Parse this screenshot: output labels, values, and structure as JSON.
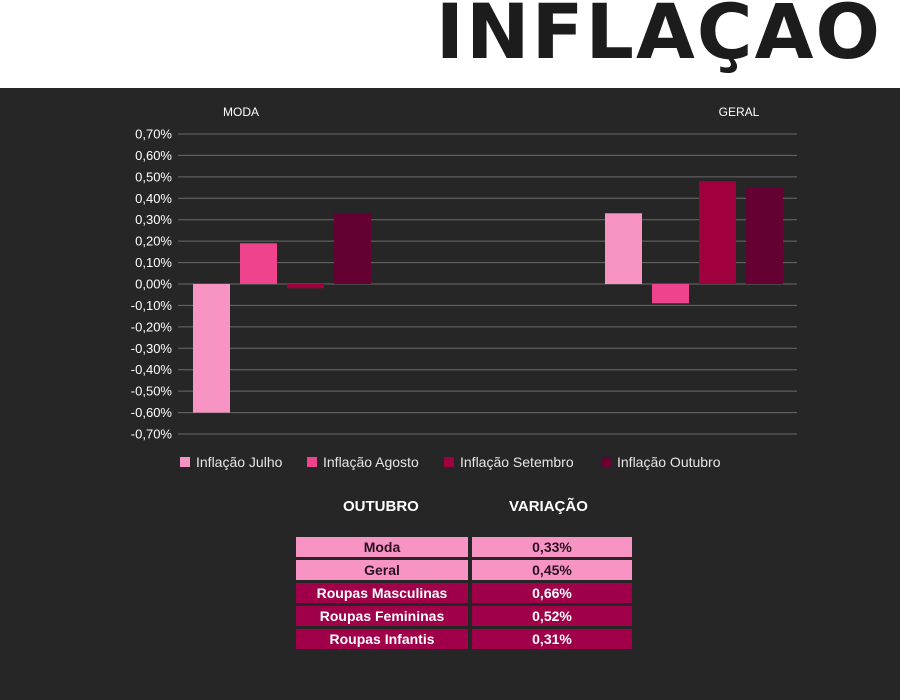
{
  "title": "INFLAÇÃO",
  "chart_data": {
    "type": "bar",
    "categories": [
      "MODA",
      "GERAL"
    ],
    "series": [
      {
        "name": "Inflação Julho",
        "values": [
          -0.6,
          0.33
        ],
        "color": "#f894c4"
      },
      {
        "name": "Inflação Agosto",
        "values": [
          0.19,
          -0.09
        ],
        "color": "#f0438e"
      },
      {
        "name": "Inflação Setembro",
        "values": [
          -0.02,
          0.48
        ],
        "color": "#a0003e"
      },
      {
        "name": "Inflação Outubro",
        "values": [
          0.33,
          0.45
        ],
        "color": "#650032"
      }
    ],
    "ylim": [
      -0.7,
      0.7
    ],
    "ytick_step": 0.1,
    "ytick_labels": [
      "0,70%",
      "0,60%",
      "0,50%",
      "0,40%",
      "0,30%",
      "0,20%",
      "0,10%",
      "0,00%",
      "-0,10%",
      "-0,20%",
      "-0,30%",
      "-0,40%",
      "-0,50%",
      "-0,60%",
      "-0,70%"
    ],
    "grid": true,
    "legend_position": "bottom"
  },
  "table": {
    "headers": [
      "OUTUBRO",
      "VARIAÇÃO"
    ],
    "rows": [
      {
        "label": "Moda",
        "value": "0,33%",
        "style": "light"
      },
      {
        "label": "Geral",
        "value": "0,45%",
        "style": "light"
      },
      {
        "label": "Roupas Masculinas",
        "value": "0,66%",
        "style": "dark"
      },
      {
        "label": "Roupas Femininas",
        "value": "0,52%",
        "style": "dark"
      },
      {
        "label": "Roupas Infantis",
        "value": "0,31%",
        "style": "dark"
      }
    ],
    "colors": {
      "light_bg": "#f894c4",
      "light_text": "#2a1020",
      "dark_bg": "#a0004a",
      "dark_text": "#ffffff"
    }
  }
}
